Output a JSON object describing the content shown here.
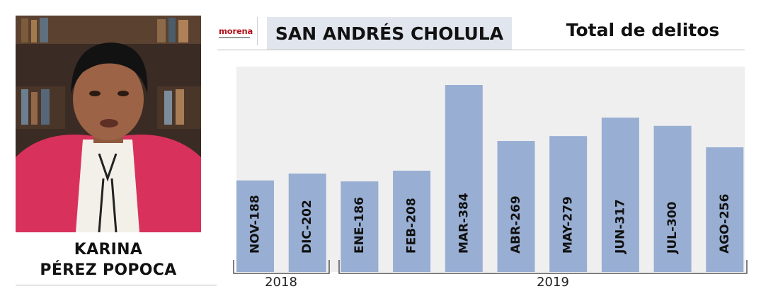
{
  "person": {
    "name_line1": "KARINA",
    "name_line2": "PÉREZ POPOCA"
  },
  "party": {
    "logo_text": "morena"
  },
  "header": {
    "municipality": "SAN ANDRÉS CHOLULA",
    "title": "Total de delitos"
  },
  "colors": {
    "bar": "#98aed2",
    "plot_bg": "#efefef",
    "header_box": "#e1e6ee",
    "party": "#b5121b"
  },
  "chart_data": {
    "type": "bar",
    "title": "Total de delitos",
    "categories": [
      "NOV",
      "DIC",
      "ENE",
      "FEB",
      "MAR",
      "ABR",
      "MAY",
      "JUN",
      "JUL",
      "AGO"
    ],
    "values": [
      188,
      202,
      186,
      208,
      384,
      269,
      279,
      317,
      300,
      256
    ],
    "bar_labels": [
      "NOV-188",
      "DIC-202",
      "ENE-186",
      "FEB-208",
      "MAR-384",
      "ABR-269",
      "MAY-279",
      "JUN-317",
      "JUL-300",
      "AGO-256"
    ],
    "year_groups": [
      {
        "label": "2018",
        "start": 0,
        "end": 1
      },
      {
        "label": "2019",
        "start": 2,
        "end": 9
      }
    ],
    "ylim": [
      0,
      400
    ],
    "grid": false,
    "legend": "none"
  }
}
